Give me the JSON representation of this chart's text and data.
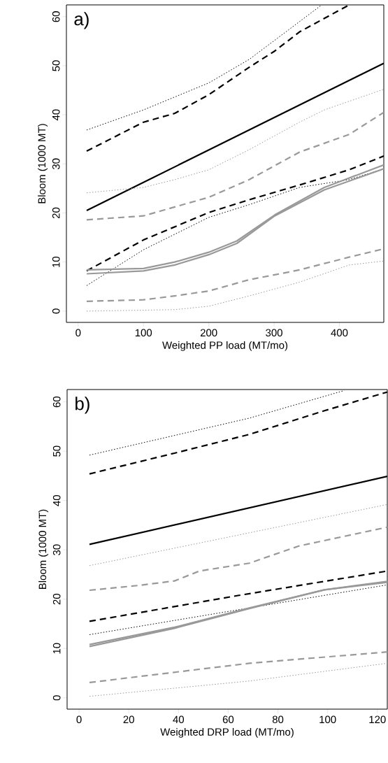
{
  "chart_data": [
    {
      "type": "line",
      "xlabel": "Weighted PP load (MT/mo)",
      "ylabel": "Bloom (1000 MT)",
      "annotations": [
        "a)"
      ],
      "xlim": [
        -18,
        468
      ],
      "ylim": [
        -2.3,
        62.4
      ],
      "xticks": [
        0,
        100,
        200,
        300,
        400
      ],
      "yticks": [
        0,
        10,
        20,
        30,
        40,
        50,
        60
      ],
      "series": [
        {
          "color": "#000000",
          "line_style": "dotted",
          "x": [
            13,
            100,
            200,
            262,
            373
          ],
          "values": [
            36.9,
            41,
            46.5,
            51.3,
            62.4
          ]
        },
        {
          "color": "#000000",
          "line_style": "dashed",
          "x": [
            13,
            100,
            148,
            200,
            262,
            301,
            339,
            415
          ],
          "values": [
            32.6,
            38.5,
            40.3,
            44.1,
            49.7,
            53,
            56.9,
            62.4
          ]
        },
        {
          "color": "#000000",
          "line_style": "solid",
          "x": [
            13,
            468
          ],
          "values": [
            20.5,
            50.5
          ]
        },
        {
          "color": "#999999",
          "line_style": "dotted",
          "x": [
            13,
            100,
            148,
            200,
            262,
            339,
            377,
            468
          ],
          "values": [
            24.1,
            25.2,
            26.8,
            28.8,
            32.9,
            38.5,
            41,
            45.2
          ]
        },
        {
          "color": "#999999",
          "line_style": "dashed",
          "x": [
            13,
            100,
            200,
            262,
            339,
            415,
            468
          ],
          "values": [
            18.6,
            19.4,
            23.2,
            26.8,
            32.4,
            36,
            40.5
          ]
        },
        {
          "color": "#000000",
          "line_style": "dashed",
          "x": [
            13,
            100,
            200,
            262,
            339,
            415,
            468
          ],
          "values": [
            8.2,
            14.5,
            20.1,
            22.7,
            25.7,
            28.8,
            31.6
          ]
        },
        {
          "color": "#000000",
          "line_style": "dotted",
          "x": [
            13,
            100,
            200,
            262,
            339,
            415,
            468
          ],
          "values": [
            5.2,
            12.5,
            19.1,
            21.7,
            25.2,
            26.8,
            29
          ]
        },
        {
          "color": "#999999",
          "line_style": "solid",
          "x": [
            13,
            100,
            148,
            200,
            243,
            301,
            377,
            468
          ],
          "values": [
            8.4,
            8.7,
            10,
            12,
            14.3,
            19.6,
            25.2,
            29.8
          ]
        },
        {
          "color": "#999999",
          "line_style": "solid",
          "x": [
            13,
            100,
            148,
            200,
            243,
            301,
            377,
            468
          ],
          "values": [
            7.6,
            8.2,
            9.4,
            11.5,
            13.8,
            19.4,
            24.7,
            29
          ]
        },
        {
          "color": "#999999",
          "line_style": "dashed",
          "x": [
            13,
            100,
            148,
            200,
            262,
            301,
            339,
            415,
            468
          ],
          "values": [
            2,
            2.3,
            3.1,
            4.1,
            6.4,
            7.4,
            8.4,
            11,
            12.7
          ]
        },
        {
          "color": "#999999",
          "line_style": "dotted",
          "x": [
            13,
            148,
            200,
            262,
            339,
            415,
            468
          ],
          "values": [
            0,
            0.3,
            1,
            3.1,
            5.9,
            9.4,
            10.2
          ]
        }
      ]
    },
    {
      "type": "line",
      "xlabel": "Weighted DRP load (MT/mo)",
      "ylabel": "Bloom (1000 MT)",
      "annotations": [
        "b)"
      ],
      "xlim": [
        -4.8,
        124
      ],
      "ylim": [
        -2.3,
        62.5
      ],
      "xticks": [
        0,
        20,
        40,
        60,
        80,
        100,
        120
      ],
      "yticks": [
        0,
        10,
        20,
        30,
        40,
        50,
        60
      ],
      "series": [
        {
          "color": "#000000",
          "line_style": "dotted",
          "x": [
            4.2,
            68.5,
            106.7
          ],
          "values": [
            49.2,
            56.7,
            62.3
          ]
        },
        {
          "color": "#000000",
          "line_style": "dashed",
          "x": [
            4.2,
            38.4,
            68.5,
            98.7,
            124
          ],
          "values": [
            45.4,
            49.6,
            53.4,
            58.2,
            62
          ]
        },
        {
          "color": "#000000",
          "line_style": "solid",
          "x": [
            4.2,
            124
          ],
          "values": [
            31.1,
            44.9
          ]
        },
        {
          "color": "#999999",
          "line_style": "dotted",
          "x": [
            4.2,
            124
          ],
          "values": [
            26.8,
            39.2
          ]
        },
        {
          "color": "#999999",
          "line_style": "dashed",
          "x": [
            4.2,
            24.3,
            38.4,
            48.4,
            68.5,
            88.6,
            124
          ],
          "values": [
            21.8,
            22.8,
            23.7,
            25.7,
            27.3,
            30.8,
            34.6
          ]
        },
        {
          "color": "#000000",
          "line_style": "dashed",
          "x": [
            4.2,
            63.5,
            124
          ],
          "values": [
            15.5,
            20.7,
            25.7
          ]
        },
        {
          "color": "#000000",
          "line_style": "dotted",
          "x": [
            4.2,
            124
          ],
          "values": [
            12.8,
            22.9
          ]
        },
        {
          "color": "#999999",
          "line_style": "solid",
          "x": [
            4.2,
            38.4,
            68.5,
            98.7,
            124
          ],
          "values": [
            10.4,
            14.1,
            18.1,
            21.9,
            23.6
          ]
        },
        {
          "color": "#999999",
          "line_style": "solid",
          "x": [
            4.2,
            38.4,
            68.5,
            98.7,
            124
          ],
          "values": [
            10.8,
            14.3,
            18.2,
            21.9,
            23.4
          ]
        },
        {
          "color": "#999999",
          "line_style": "dashed",
          "x": [
            4.2,
            68.5,
            124
          ],
          "values": [
            3.1,
            7,
            9.3
          ]
        },
        {
          "color": "#999999",
          "line_style": "dotted",
          "x": [
            4.2,
            68.5,
            124
          ],
          "values": [
            0.3,
            3.4,
            7
          ]
        }
      ]
    }
  ]
}
